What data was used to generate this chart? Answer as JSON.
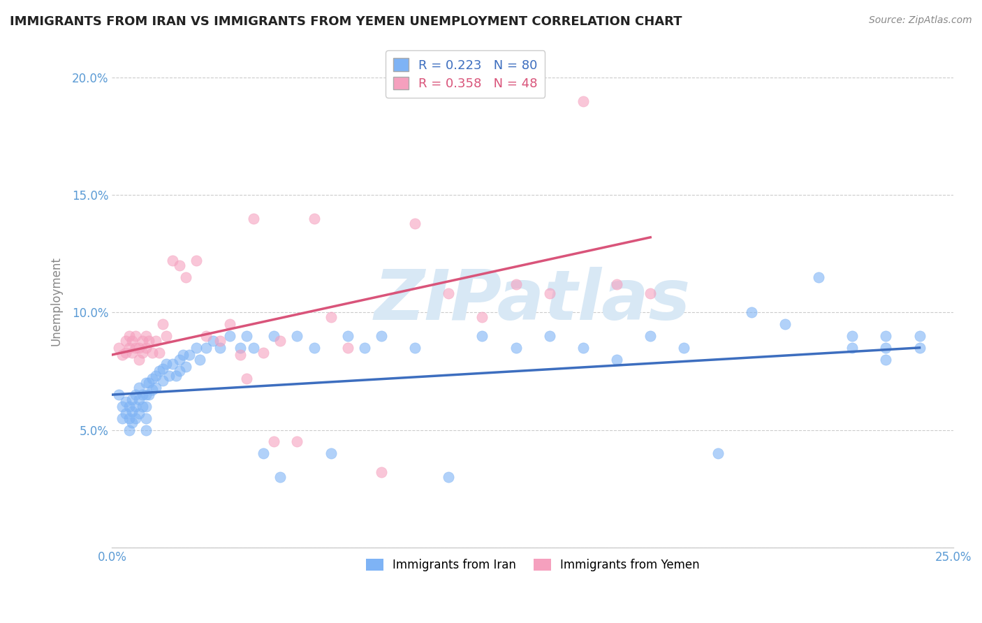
{
  "title": "IMMIGRANTS FROM IRAN VS IMMIGRANTS FROM YEMEN UNEMPLOYMENT CORRELATION CHART",
  "source": "Source: ZipAtlas.com",
  "ylabel": "Unemployment",
  "xlim": [
    0.0,
    0.25
  ],
  "ylim": [
    0.0,
    0.21
  ],
  "y_ticks": [
    0.0,
    0.05,
    0.1,
    0.15,
    0.2
  ],
  "y_tick_labels": [
    "",
    "5.0%",
    "10.0%",
    "15.0%",
    "20.0%"
  ],
  "x_ticks": [
    0.0,
    0.05,
    0.1,
    0.15,
    0.2,
    0.25
  ],
  "x_tick_labels": [
    "0.0%",
    "",
    "",
    "",
    "",
    "25.0%"
  ],
  "iran_R": 0.223,
  "iran_N": 80,
  "yemen_R": 0.358,
  "yemen_N": 48,
  "iran_color": "#7EB3F5",
  "yemen_color": "#F5A0BE",
  "iran_line_color": "#3D6EBF",
  "yemen_line_color": "#D9547A",
  "tick_label_color": "#5B9BD5",
  "watermark_text": "ZIPatlas",
  "watermark_color": "#D8E8F5",
  "iran_x": [
    0.002,
    0.003,
    0.003,
    0.004,
    0.004,
    0.005,
    0.005,
    0.005,
    0.006,
    0.006,
    0.006,
    0.007,
    0.007,
    0.007,
    0.008,
    0.008,
    0.008,
    0.009,
    0.009,
    0.01,
    0.01,
    0.01,
    0.01,
    0.01,
    0.011,
    0.011,
    0.012,
    0.012,
    0.013,
    0.013,
    0.014,
    0.015,
    0.015,
    0.016,
    0.017,
    0.018,
    0.019,
    0.02,
    0.02,
    0.021,
    0.022,
    0.023,
    0.025,
    0.026,
    0.028,
    0.03,
    0.032,
    0.035,
    0.038,
    0.04,
    0.042,
    0.045,
    0.048,
    0.05,
    0.055,
    0.06,
    0.065,
    0.07,
    0.075,
    0.08,
    0.09,
    0.1,
    0.11,
    0.12,
    0.13,
    0.14,
    0.15,
    0.16,
    0.17,
    0.18,
    0.19,
    0.2,
    0.21,
    0.22,
    0.22,
    0.23,
    0.23,
    0.23,
    0.24,
    0.24
  ],
  "iran_y": [
    0.065,
    0.06,
    0.055,
    0.062,
    0.057,
    0.06,
    0.055,
    0.05,
    0.063,
    0.058,
    0.053,
    0.065,
    0.06,
    0.055,
    0.068,
    0.063,
    0.057,
    0.065,
    0.06,
    0.07,
    0.065,
    0.06,
    0.055,
    0.05,
    0.07,
    0.065,
    0.072,
    0.067,
    0.073,
    0.068,
    0.075,
    0.076,
    0.071,
    0.078,
    0.073,
    0.078,
    0.073,
    0.08,
    0.075,
    0.082,
    0.077,
    0.082,
    0.085,
    0.08,
    0.085,
    0.088,
    0.085,
    0.09,
    0.085,
    0.09,
    0.085,
    0.04,
    0.09,
    0.03,
    0.09,
    0.085,
    0.04,
    0.09,
    0.085,
    0.09,
    0.085,
    0.03,
    0.09,
    0.085,
    0.09,
    0.085,
    0.08,
    0.09,
    0.085,
    0.04,
    0.1,
    0.095,
    0.115,
    0.09,
    0.085,
    0.09,
    0.085,
    0.08,
    0.09,
    0.085
  ],
  "yemen_x": [
    0.002,
    0.003,
    0.004,
    0.004,
    0.005,
    0.005,
    0.006,
    0.006,
    0.007,
    0.007,
    0.008,
    0.008,
    0.009,
    0.009,
    0.01,
    0.01,
    0.011,
    0.012,
    0.013,
    0.014,
    0.015,
    0.016,
    0.018,
    0.02,
    0.022,
    0.025,
    0.028,
    0.032,
    0.035,
    0.038,
    0.042,
    0.048,
    0.055,
    0.06,
    0.065,
    0.07,
    0.08,
    0.09,
    0.1,
    0.11,
    0.12,
    0.13,
    0.14,
    0.15,
    0.16,
    0.05,
    0.04,
    0.045
  ],
  "yemen_y": [
    0.085,
    0.082,
    0.088,
    0.083,
    0.09,
    0.085,
    0.088,
    0.083,
    0.09,
    0.085,
    0.085,
    0.08,
    0.088,
    0.083,
    0.09,
    0.085,
    0.088,
    0.083,
    0.088,
    0.083,
    0.095,
    0.09,
    0.122,
    0.12,
    0.115,
    0.122,
    0.09,
    0.088,
    0.095,
    0.082,
    0.14,
    0.045,
    0.045,
    0.14,
    0.098,
    0.085,
    0.032,
    0.138,
    0.108,
    0.098,
    0.112,
    0.108,
    0.19,
    0.112,
    0.108,
    0.088,
    0.072,
    0.083
  ],
  "iran_trend_x": [
    0.0,
    0.24
  ],
  "iran_trend_y": [
    0.065,
    0.085
  ],
  "yemen_trend_x": [
    0.0,
    0.16
  ],
  "yemen_trend_y": [
    0.082,
    0.132
  ]
}
